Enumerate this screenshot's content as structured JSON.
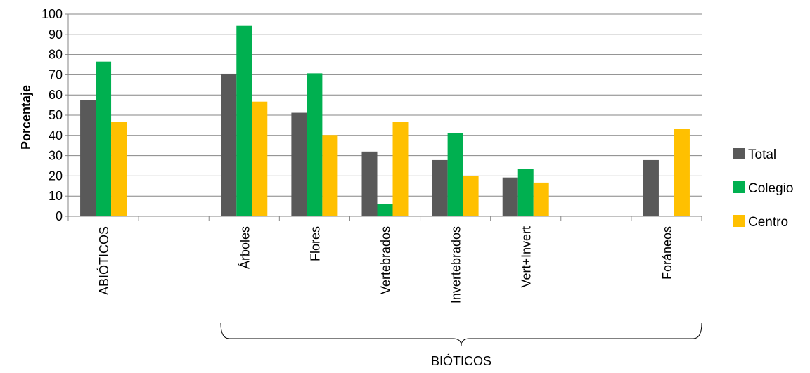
{
  "chart_data": {
    "type": "bar",
    "ylabel": "Porcentaje",
    "ylim": [
      0,
      100
    ],
    "yticks": [
      0,
      10,
      20,
      30,
      40,
      50,
      60,
      70,
      80,
      90,
      100
    ],
    "grid": true,
    "legend_position": "right",
    "categories": [
      "ABIÓTICOS",
      "",
      "Árboles",
      "Flores",
      "Vertebrados",
      "Invertebrados",
      "Vert+Invert",
      "",
      "Foráneos"
    ],
    "series": [
      {
        "name": "Total",
        "color": "#595959",
        "values": [
          57.5,
          null,
          70.5,
          51.2,
          32,
          27.8,
          19.2,
          null,
          27.8
        ]
      },
      {
        "name": "Colegio",
        "color": "#00b050",
        "values": [
          76.5,
          null,
          94.2,
          70.7,
          5.9,
          41.2,
          23.5,
          null,
          null
        ]
      },
      {
        "name": "Centro",
        "color": "#ffc000",
        "values": [
          46.6,
          null,
          56.7,
          40.2,
          46.7,
          20,
          16.7,
          null,
          43.3
        ]
      }
    ],
    "group_annotation": {
      "label": "BIÓTICOS"
    }
  }
}
